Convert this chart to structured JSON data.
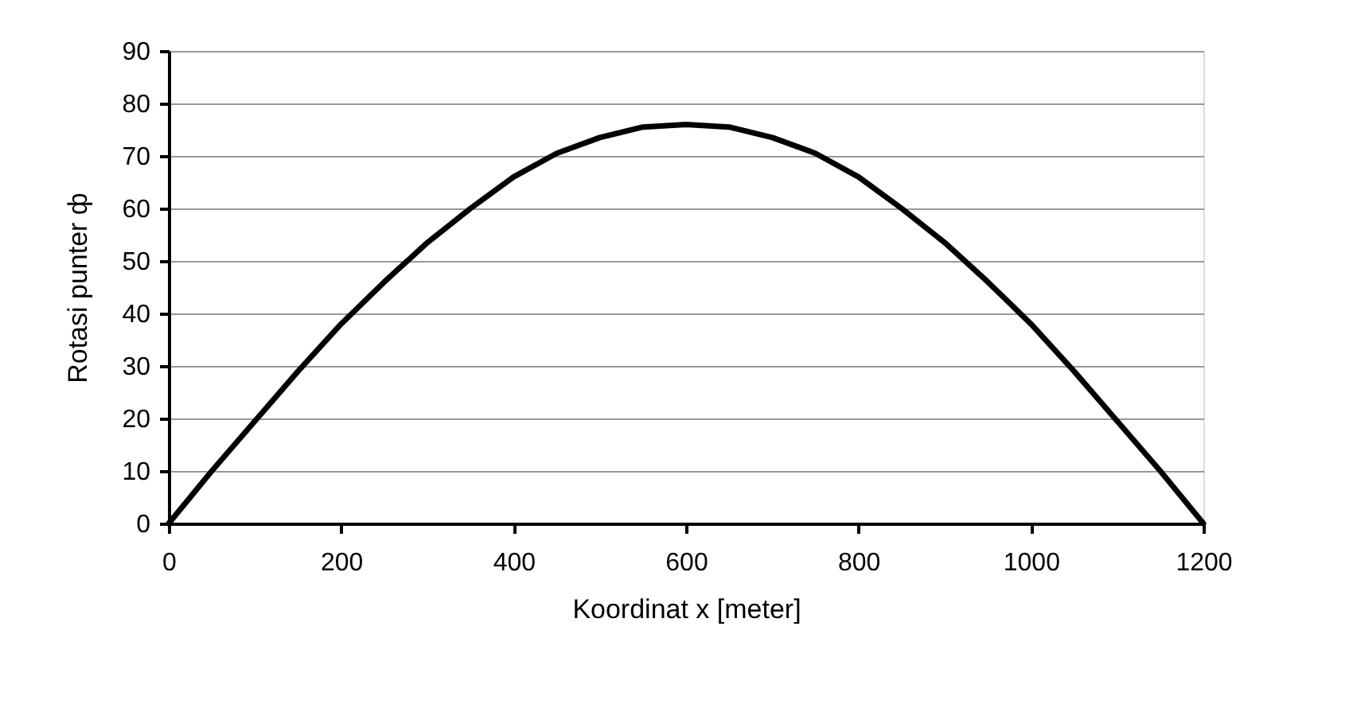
{
  "chart_data": {
    "type": "line",
    "xlabel": "Koordinat x [meter]",
    "ylabel": "Rotasi  punter  ф",
    "x": [
      0,
      50,
      100,
      150,
      200,
      250,
      300,
      350,
      400,
      450,
      500,
      550,
      600,
      650,
      700,
      750,
      800,
      850,
      900,
      950,
      1000,
      1050,
      1100,
      1150,
      1200
    ],
    "series": [
      {
        "color": "#000000",
        "values": [
          0,
          10,
          19.5,
          29,
          38,
          46,
          53.5,
          60,
          66,
          70.5,
          73.5,
          75.5,
          76,
          75.5,
          73.5,
          70.5,
          66,
          60,
          53.5,
          46,
          38,
          29,
          19.5,
          10,
          0
        ]
      }
    ],
    "xlim": [
      0,
      1200
    ],
    "xticks": [
      0,
      200,
      400,
      600,
      800,
      1000,
      1200
    ],
    "ylim": [
      0,
      90
    ],
    "yticks": [
      0,
      10,
      20,
      30,
      40,
      50,
      60,
      70,
      80,
      90
    ],
    "grid": "y",
    "marker": "none",
    "line_style": "solid"
  }
}
